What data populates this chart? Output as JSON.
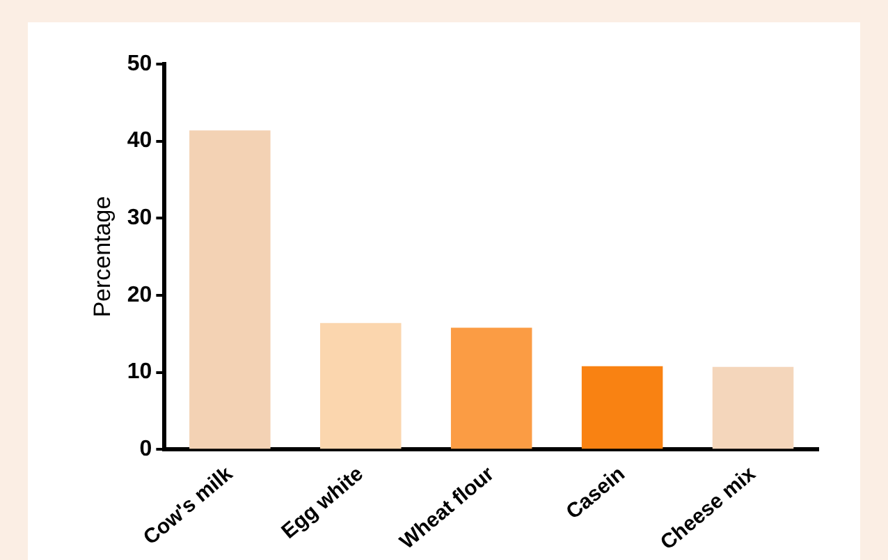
{
  "chart_data": {
    "type": "bar",
    "ylabel": "Percentage",
    "categories": [
      "Cow's milk",
      "Egg white",
      "Wheat flour",
      "Casein",
      "Cheese mix"
    ],
    "values": [
      41.4,
      16.4,
      15.8,
      10.8,
      10.7
    ],
    "colors": [
      "#f3d2b4",
      "#fbd6ae",
      "#fb9c44",
      "#f98212",
      "#f4d6bb"
    ],
    "ylim": [
      0,
      50
    ],
    "yticks": [
      0,
      10,
      20,
      30,
      40,
      50
    ],
    "grid": false,
    "legend": false
  }
}
